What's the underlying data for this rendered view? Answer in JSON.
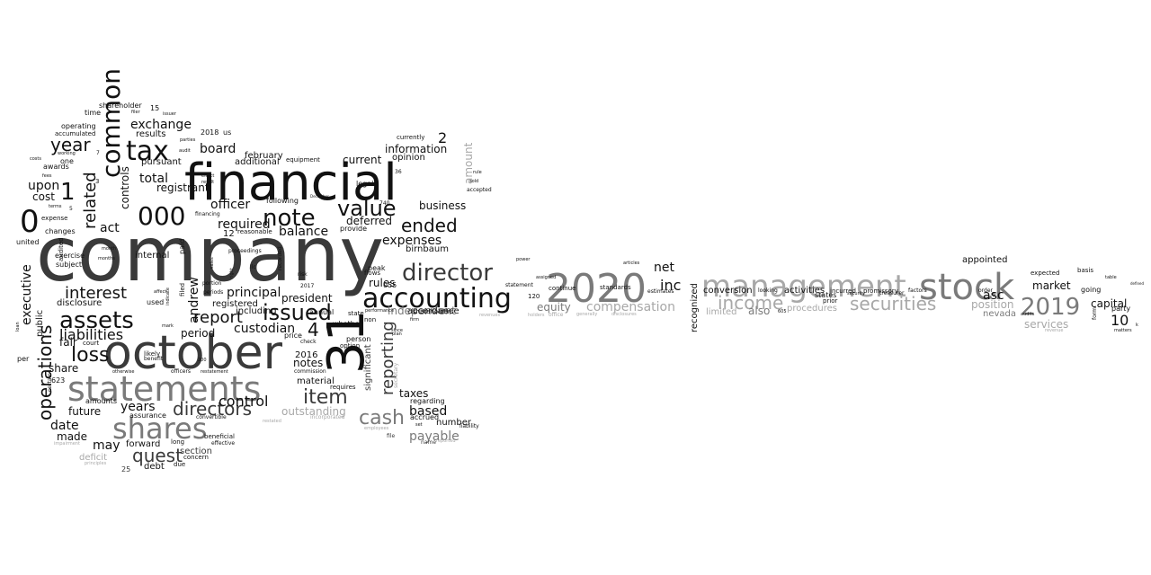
{
  "word_cloud": {
    "shades": {
      "black": "#111111",
      "dark": "#3a3a3a",
      "mid": "#7a7a7a",
      "light": "#a8a8a8"
    },
    "words": [
      {
        "text": "company",
        "shade": "dark"
      },
      {
        "text": "financial",
        "shade": "black"
      },
      {
        "text": "october",
        "shade": "dark"
      },
      {
        "text": "statements",
        "shade": "mid"
      },
      {
        "text": "2020",
        "shade": "mid"
      },
      {
        "text": "stock",
        "shade": "mid"
      },
      {
        "text": "management",
        "shade": "light"
      },
      {
        "text": "accounting",
        "shade": "black"
      },
      {
        "text": "31",
        "shade": "black"
      },
      {
        "text": "shares",
        "shade": "mid"
      },
      {
        "text": "director",
        "shade": "dark"
      },
      {
        "text": "2019",
        "shade": "mid"
      },
      {
        "text": "tax",
        "shade": "black"
      },
      {
        "text": "common",
        "shade": "black"
      },
      {
        "text": "note",
        "shade": "black"
      },
      {
        "text": "000",
        "shade": "black"
      },
      {
        "text": "assets",
        "shade": "black"
      },
      {
        "text": "value",
        "shade": "black"
      },
      {
        "text": "issued",
        "shade": "black"
      },
      {
        "text": "0",
        "shade": "black"
      },
      {
        "text": "operations",
        "shade": "black"
      },
      {
        "text": "item",
        "shade": "dark"
      },
      {
        "text": "directors",
        "shade": "dark"
      },
      {
        "text": "securities",
        "shade": "light"
      },
      {
        "text": "income",
        "shade": "light"
      },
      {
        "text": "compensation",
        "shade": "light"
      },
      {
        "text": "cash",
        "shade": "mid"
      },
      {
        "text": "quest",
        "shade": "dark"
      },
      {
        "text": "reporting",
        "shade": "dark"
      },
      {
        "text": "loss",
        "shade": "black"
      },
      {
        "text": "interest",
        "shade": "black"
      },
      {
        "text": "year",
        "shade": "black"
      },
      {
        "text": "1",
        "shade": "black"
      },
      {
        "text": "report",
        "shade": "black"
      },
      {
        "text": "4",
        "shade": "black"
      },
      {
        "text": "ended",
        "shade": "black"
      },
      {
        "text": "liabilities",
        "shade": "black"
      },
      {
        "text": "control",
        "shade": "black"
      },
      {
        "text": "related",
        "shade": "black"
      },
      {
        "text": "exchange",
        "shade": "black"
      },
      {
        "text": "expenses",
        "shade": "black"
      },
      {
        "text": "principal",
        "shade": "black"
      },
      {
        "text": "officer",
        "shade": "black"
      },
      {
        "text": "custodian",
        "shade": "black"
      },
      {
        "text": "balance",
        "shade": "black"
      },
      {
        "text": "business",
        "shade": "black"
      },
      {
        "text": "required",
        "shade": "black"
      },
      {
        "text": "board",
        "shade": "black"
      },
      {
        "text": "total",
        "shade": "black"
      },
      {
        "text": "rules",
        "shade": "black"
      },
      {
        "text": "inc",
        "shade": "black"
      },
      {
        "text": "net",
        "shade": "black"
      },
      {
        "text": "date",
        "shade": "black"
      },
      {
        "text": "years",
        "shade": "black"
      },
      {
        "text": "may",
        "shade": "black"
      },
      {
        "text": "based",
        "shade": "black"
      },
      {
        "text": "act",
        "shade": "black"
      },
      {
        "text": "andrew",
        "shade": "black"
      },
      {
        "text": "executive",
        "shade": "black"
      },
      {
        "text": "payable",
        "shade": "mid"
      },
      {
        "text": "independent",
        "shade": "mid"
      },
      {
        "text": "outstanding",
        "shade": "light"
      },
      {
        "text": "amount",
        "shade": "light"
      },
      {
        "text": "equity",
        "shade": "mid"
      },
      {
        "text": "services",
        "shade": "light"
      },
      {
        "text": "position",
        "shade": "light"
      },
      {
        "text": "procedures",
        "shade": "light"
      },
      {
        "text": "market",
        "shade": "black"
      },
      {
        "text": "capital",
        "shade": "black"
      },
      {
        "text": "asc",
        "shade": "black"
      },
      {
        "text": "10",
        "shade": "black"
      },
      {
        "text": "also",
        "shade": "mid"
      },
      {
        "text": "limited",
        "shade": "light"
      },
      {
        "text": "nevada",
        "shade": "mid"
      },
      {
        "text": "2",
        "shade": "black"
      },
      {
        "text": "upon",
        "shade": "black"
      },
      {
        "text": "cost",
        "shade": "black"
      },
      {
        "text": "information",
        "shade": "black"
      },
      {
        "text": "current",
        "shade": "black"
      },
      {
        "text": "deferred",
        "shade": "black"
      },
      {
        "text": "registrant",
        "shade": "black"
      },
      {
        "text": "results",
        "shade": "black"
      },
      {
        "text": "controls",
        "shade": "black"
      },
      {
        "text": "period",
        "shade": "black"
      },
      {
        "text": "future",
        "shade": "black"
      },
      {
        "text": "made",
        "shade": "black"
      },
      {
        "text": "fair",
        "shade": "black"
      },
      {
        "text": "share",
        "shade": "black"
      },
      {
        "text": "taxes",
        "shade": "black"
      },
      {
        "text": "number",
        "shade": "black"
      },
      {
        "text": "material",
        "shade": "black"
      },
      {
        "text": "notes",
        "shade": "black"
      },
      {
        "text": "2016",
        "shade": "black"
      },
      {
        "text": "president",
        "shade": "black"
      },
      {
        "text": "section",
        "shade": "dark"
      },
      {
        "text": "deficit",
        "shade": "light"
      },
      {
        "text": "forward",
        "shade": "black"
      },
      {
        "text": "debt",
        "shade": "black"
      },
      {
        "text": "internal",
        "shade": "black"
      },
      {
        "text": "disclosure",
        "shade": "black"
      },
      {
        "text": "public",
        "shade": "black"
      },
      {
        "text": "birnbaum",
        "shade": "black"
      },
      {
        "text": "accordance",
        "shade": "black"
      },
      {
        "text": "opinion",
        "shade": "black"
      },
      {
        "text": "conversion",
        "shade": "black"
      },
      {
        "text": "activities",
        "shade": "black"
      },
      {
        "text": "appointed",
        "shade": "black"
      },
      {
        "text": "recognized",
        "shade": "black"
      },
      {
        "text": "significant",
        "shade": "dark"
      },
      {
        "text": "registered",
        "shade": "black"
      },
      {
        "text": "pursuant",
        "shade": "black"
      },
      {
        "text": "february",
        "shade": "black"
      },
      {
        "text": "additional",
        "shade": "black"
      },
      {
        "text": "including",
        "shade": "black"
      },
      {
        "text": "regarding",
        "shade": "black"
      },
      {
        "text": "accrued",
        "shade": "black"
      },
      {
        "text": "shareholder",
        "shade": "black"
      },
      {
        "text": "operating",
        "shade": "black"
      },
      {
        "text": "time",
        "shade": "black"
      },
      {
        "text": "accumulated",
        "shade": "black"
      },
      {
        "text": "awards",
        "shade": "black"
      },
      {
        "text": "one",
        "shade": "black"
      },
      {
        "text": "changes",
        "shade": "black"
      },
      {
        "text": "expense",
        "shade": "black"
      },
      {
        "text": "subject",
        "shade": "black"
      },
      {
        "text": "exercise",
        "shade": "black"
      },
      {
        "text": "court",
        "shade": "black"
      },
      {
        "text": "amounts",
        "shade": "black"
      },
      {
        "text": "assurance",
        "shade": "black"
      },
      {
        "text": "convertible",
        "shade": "black"
      },
      {
        "text": "beneficial",
        "shade": "black"
      },
      {
        "text": "effective",
        "shade": "black"
      },
      {
        "text": "concern",
        "shade": "black"
      },
      {
        "text": "long",
        "shade": "black"
      },
      {
        "text": "due",
        "shade": "black"
      },
      {
        "text": "price",
        "shade": "black"
      },
      {
        "text": "annual",
        "shade": "black"
      },
      {
        "text": "provide",
        "shade": "black"
      },
      {
        "text": "following",
        "shade": "black"
      },
      {
        "text": "currently",
        "shade": "black"
      },
      {
        "text": "legal",
        "shade": "black"
      },
      {
        "text": "equipment",
        "shade": "black"
      },
      {
        "text": "whether",
        "shade": "black"
      },
      {
        "text": "state",
        "shade": "black"
      },
      {
        "text": "person",
        "shade": "black"
      },
      {
        "text": "option",
        "shade": "black"
      },
      {
        "text": "requires",
        "shade": "black"
      },
      {
        "text": "commission",
        "shade": "black"
      },
      {
        "text": "shareholders",
        "shade": "black"
      },
      {
        "text": "flows",
        "shade": "black"
      },
      {
        "text": "peak",
        "shade": "black"
      },
      {
        "text": "continue",
        "shade": "black"
      },
      {
        "text": "standards",
        "shade": "black"
      },
      {
        "text": "statement",
        "shade": "black"
      },
      {
        "text": "estimates",
        "shade": "black"
      },
      {
        "text": "incurred",
        "shade": "black"
      },
      {
        "text": "promissory",
        "shade": "black"
      },
      {
        "text": "looking",
        "shade": "black"
      },
      {
        "text": "factors",
        "shade": "black"
      },
      {
        "text": "order",
        "shade": "black"
      },
      {
        "text": "expected",
        "shade": "black"
      },
      {
        "text": "basis",
        "shade": "black"
      },
      {
        "text": "going",
        "shade": "black"
      },
      {
        "text": "party",
        "shade": "black"
      },
      {
        "text": "states",
        "shade": "black"
      },
      {
        "text": "prior",
        "shade": "black"
      },
      {
        "text": "treasurer",
        "shade": "black"
      },
      {
        "text": "security",
        "shade": "black"
      },
      {
        "text": "certain",
        "shade": "black"
      },
      {
        "text": "united",
        "shade": "black"
      },
      {
        "text": "paid",
        "shade": "black"
      },
      {
        "text": "audited",
        "shade": "black"
      },
      {
        "text": "filed",
        "shade": "black"
      },
      {
        "text": "used",
        "shade": "black"
      },
      {
        "text": "likely",
        "shade": "black"
      },
      {
        "text": "benefit",
        "shade": "black"
      },
      {
        "text": "officers",
        "shade": "black"
      },
      {
        "text": "restatement",
        "shade": "black"
      },
      {
        "text": "reasonable",
        "shade": "black"
      },
      {
        "text": "proceedings",
        "shade": "black"
      },
      {
        "text": "financing",
        "shade": "black"
      },
      {
        "text": "portion",
        "shade": "black"
      },
      {
        "text": "periods",
        "shade": "black"
      },
      {
        "text": "llc",
        "shade": "black"
      },
      {
        "text": "recorded",
        "shade": "black"
      },
      {
        "text": "risk",
        "shade": "black"
      },
      {
        "text": "check",
        "shade": "black"
      },
      {
        "text": "2017",
        "shade": "black"
      },
      {
        "text": "2018",
        "shade": "black"
      },
      {
        "text": "us",
        "shade": "black"
      },
      {
        "text": "15",
        "shade": "black"
      },
      {
        "text": "12",
        "shade": "black"
      },
      {
        "text": "055",
        "shade": "black"
      },
      {
        "text": "120",
        "shade": "black"
      },
      {
        "text": "623",
        "shade": "black"
      },
      {
        "text": "non",
        "shade": "black"
      },
      {
        "text": "since",
        "shade": "black"
      },
      {
        "text": "plan",
        "shade": "black"
      },
      {
        "text": "performance",
        "shade": "black"
      },
      {
        "text": "loan",
        "shade": "black"
      },
      {
        "text": "per",
        "shade": "black"
      },
      {
        "text": "indicate",
        "shade": "black"
      },
      {
        "text": "affect",
        "shade": "black"
      },
      {
        "text": "accepted",
        "shade": "black"
      },
      {
        "text": "sold",
        "shade": "black"
      },
      {
        "text": "rule",
        "shade": "black"
      },
      {
        "text": "secretary",
        "shade": "light"
      },
      {
        "text": "employees",
        "shade": "light"
      },
      {
        "text": "incorporated",
        "shade": "light"
      },
      {
        "text": "revenues",
        "shade": "light"
      },
      {
        "text": "generally",
        "shade": "light"
      },
      {
        "text": "disclosures",
        "shade": "light"
      },
      {
        "text": "impairment",
        "shade": "light"
      },
      {
        "text": "principles",
        "shade": "light"
      },
      {
        "text": "revenue",
        "shade": "light"
      },
      {
        "text": "restated",
        "shade": "light"
      },
      {
        "text": "reported",
        "shade": "light"
      },
      {
        "text": "file",
        "shade": "dark"
      },
      {
        "text": "name",
        "shade": "dark"
      },
      {
        "text": "25",
        "shade": "dark"
      },
      {
        "text": "mark",
        "shade": "black"
      },
      {
        "text": "matters",
        "shade": "black"
      },
      {
        "text": "audits",
        "shade": "black"
      },
      {
        "text": "table",
        "shade": "black"
      },
      {
        "text": "defined",
        "shade": "black"
      },
      {
        "text": "months",
        "shade": "black"
      },
      {
        "text": "month",
        "shade": "black"
      },
      {
        "text": "terms",
        "shade": "black"
      },
      {
        "text": "fees",
        "shade": "black"
      },
      {
        "text": "costs",
        "shade": "black"
      },
      {
        "text": "working",
        "shade": "black"
      },
      {
        "text": "parties",
        "shade": "black"
      },
      {
        "text": "audit",
        "shade": "black"
      },
      {
        "text": "effect",
        "shade": "black"
      },
      {
        "text": "result",
        "shade": "black"
      },
      {
        "text": "issuer",
        "shade": "black"
      },
      {
        "text": "filer",
        "shade": "black"
      },
      {
        "text": "December",
        "shade": "black"
      },
      {
        "text": "3",
        "shade": "black"
      },
      {
        "text": "5",
        "shade": "black"
      },
      {
        "text": "6",
        "shade": "black"
      },
      {
        "text": "7",
        "shade": "black"
      },
      {
        "text": "740",
        "shade": "black"
      },
      {
        "text": "36",
        "shade": "black"
      },
      {
        "text": "200",
        "shade": "black"
      },
      {
        "text": "605",
        "shade": "black"
      },
      {
        "text": "form",
        "shade": "black"
      },
      {
        "text": "sales",
        "shade": "black"
      },
      {
        "text": "right",
        "shade": "black"
      },
      {
        "text": "power",
        "shade": "black"
      },
      {
        "text": "assigned",
        "shade": "black"
      },
      {
        "text": "articles",
        "shade": "black"
      },
      {
        "text": "firm",
        "shade": "black"
      },
      {
        "text": "holders",
        "shade": "light"
      },
      {
        "text": "office",
        "shade": "light"
      },
      {
        "text": "liability",
        "shade": "black"
      },
      {
        "text": "set",
        "shade": "black"
      },
      {
        "text": "otherwise",
        "shade": "black"
      },
      {
        "text": "k",
        "shade": "black"
      }
    ]
  }
}
